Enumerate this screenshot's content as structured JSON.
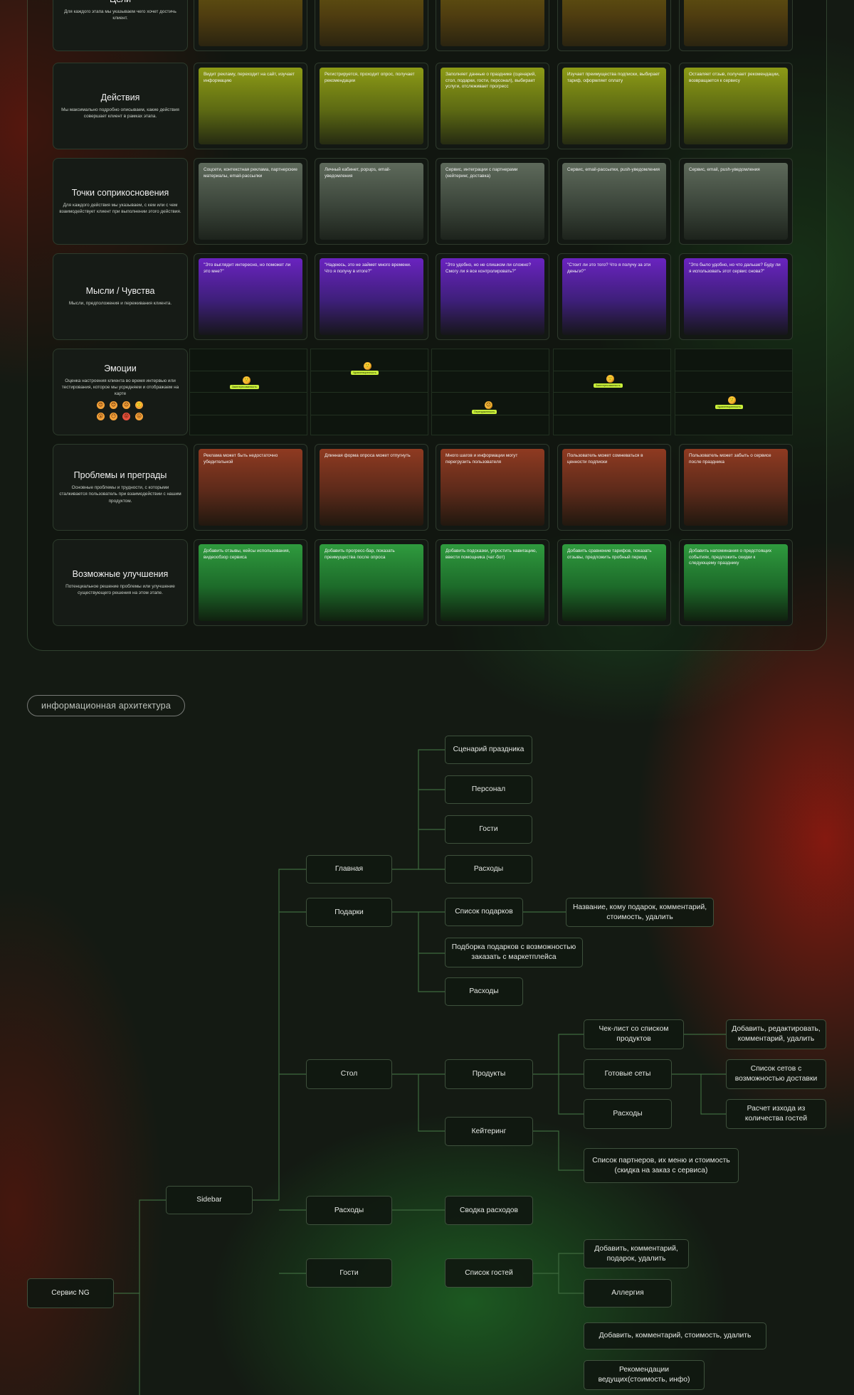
{
  "journey": {
    "rows": [
      {
        "key": "goal",
        "title": "Цели",
        "desc": "Для каждого этапа мы указываем чего хочет достичь клиент.",
        "cards": [
          "",
          "",
          "",
          "",
          ""
        ]
      },
      {
        "key": "act",
        "title": "Действия",
        "desc": "Мы максимально подробно описываем, какие действия совершает клиент в рамках этапа.",
        "cards": [
          "Видит рекламу, переходит на сайт, изучает информацию",
          "Регистрируется, проходит опрос, получает рекомендации",
          "Заполняет данные о празднике (сценарий, стол, подарки, гости, персонал), выбирает услуги, отслеживает прогресс",
          "Изучает преимущества подписки, выбирает тариф, оформляет оплату",
          "Оставляет отзыв, получает рекомендации, возвращается к сервису"
        ]
      },
      {
        "key": "touch",
        "title": "Точки соприкосновения",
        "desc": "Для каждого действия мы указываем, с кем или с чем взаимодействует клиент при выполнении этого действия.",
        "cards": [
          "Соцсети, контекстная реклама, партнерские материалы, email-рассылки",
          "Личный кабинет, popups, email-уведомления",
          "Сервис, интеграции с партнерами (кейтеринг, доставка)",
          "Сервис, email-рассылки, push-уведомления",
          "Сервис, email, push-уведомления"
        ]
      },
      {
        "key": "think",
        "title": "Мысли / Чувства",
        "desc": "Мысли, предположения и переживания клиента.",
        "cards": [
          "\"Это выглядит интересно, но поможет ли это мне?\"",
          "\"Надеюсь, это не займет много времени. Что я получу в итоге?\"",
          "\"Это удобно, но не слишком ли сложно? Смогу ли я все контролировать?\"",
          "\"Стоит ли это того? Что я получу за эти деньги?\"",
          "\"Это было удобно, но что дальше? Буду ли я использовать этот сервис снова?\""
        ]
      },
      {
        "key": "emo",
        "title": "Эмоции",
        "desc": "Оценка настроения клиента во время интервью или тестирования, которое мы усредняем и отображаем на карте"
      },
      {
        "key": "prob",
        "title": "Проблемы и преграды",
        "desc": "Основные проблемы и трудности, с которыми сталкивается пользователь при взаимодействии с нашим продуктом.",
        "cards": [
          "Реклама может быть недостаточно убедительной",
          "Длинная форма опроса может отпугнуть",
          "Много шагов и информации могут перегрузить пользователя",
          "Пользователь может сомневаться в ценности подписки",
          "Пользователь может забыть о сервисе после праздника"
        ]
      },
      {
        "key": "imp",
        "title": "Возможные улучшения",
        "desc": "Потенциальное решение проблемы или улучшение существующего решения на этом этапе.",
        "cards": [
          "Добавить отзывы, кейсы использования, видеообзор сервиса",
          "Добавить прогресс-бар, показать преимущества после опроса",
          "Добавить подсказки, упростить навигацию, ввести помощника (чат-бот)",
          "Добавить сравнение тарифов, показать отзывы, предложить пробный период",
          "Добавить напоминания о предстоящих событиях, предложить скидки к следующему празднику"
        ]
      }
    ],
    "emotions": [
      {
        "label": "Заинтересованность",
        "level": 0.7,
        "face": "🙂"
      },
      {
        "label": "Удовлетворенность",
        "level": 0.9,
        "face": "🙂"
      },
      {
        "label": "Перегруженность",
        "level": 0.35,
        "face": "😕"
      },
      {
        "label": "Заинтересованность",
        "level": 0.72,
        "face": "🙂"
      },
      {
        "label": "Удовлетворенность",
        "level": 0.42,
        "face": "🙂"
      }
    ],
    "emotion_legend": [
      "😍",
      "😊",
      "😐",
      "🙁",
      "😲",
      "😶",
      "😡",
      "😖"
    ],
    "emotion_tag_color": "#c8ee3a"
  },
  "architecture": {
    "section_label": "информационная архитектура",
    "nodes": {
      "root": "Сервис NG",
      "sidebar": "Sidebar",
      "main": "Главная",
      "gifts": "Подарки",
      "table": "Стол",
      "expenses": "Расходы",
      "guests": "Гости",
      "scenario": "Сценарий праздника",
      "staff": "Персонал",
      "main_guests": "Гости",
      "main_exp": "Расходы",
      "gift_list": "Список подарков",
      "gift_list_desc": "Название, кому подарок, комментарий, стоимость, удалить",
      "gift_pick": "Подборка подарков с возможностью заказать с маркетплейса",
      "gift_exp": "Расходы",
      "products": "Продукты",
      "catering": "Кейтеринг",
      "checklist": "Чек-лист со списком продуктов",
      "checklist_desc": "Добавить, редактировать, комментарий, удалить",
      "sets": "Готовые сеты",
      "sets_desc": "Список сетов с возможностью доставки",
      "prod_exp": "Расходы",
      "prod_exp_desc": "Расчет изхода из количества гостей",
      "partners": "Список партнеров, их меню и стоимость (скидка на заказ с сервиса)",
      "exp_summary": "Сводка расходов",
      "guest_list": "Список гостей",
      "guest_add": "Добавить, комментарий, подарок, удалить",
      "allergy": "Аллергия",
      "extra_add": "Добавить, комментарий, стоимость, удалить",
      "hosts": "Рекомендации ведущих(стоимость, инфо)"
    }
  }
}
